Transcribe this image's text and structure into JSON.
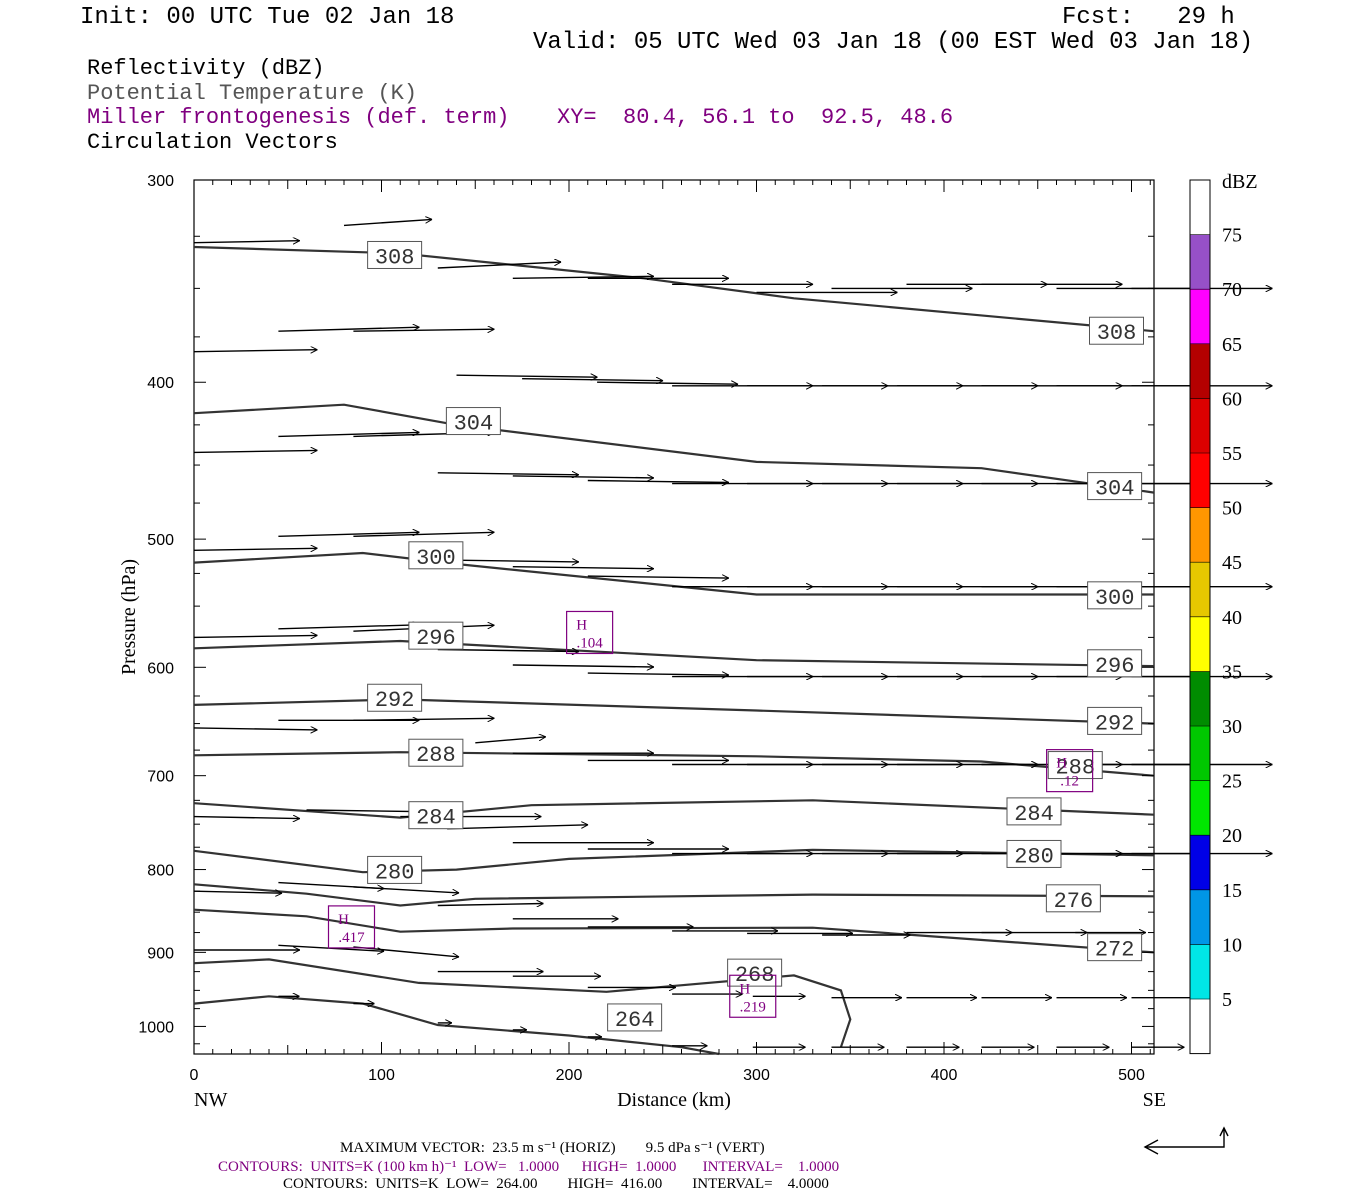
{
  "header": {
    "init": "Init: 00 UTC Tue 02 Jan 18",
    "fcst": "Fcst:   29 h",
    "valid": "Valid: 05 UTC Wed 03 Jan 18 (00 EST Wed 03 Jan 18)"
  },
  "fields": [
    "Reflectivity (dBZ)",
    "Potential Temperature (K)",
    "Miller frontogenesis (def. term)",
    "Circulation Vectors"
  ],
  "cross_section": "XY=  80.4, 56.1 to  92.5, 48.6",
  "colors": {
    "theta": "#333333",
    "frontogenesis": "#800080",
    "vectors": "#000000"
  },
  "chart_data": {
    "type": "line",
    "xlabel": "Distance (km)",
    "ylabel": "Pressure (hPa)",
    "xlim": [
      0,
      512
    ],
    "ylim": [
      1040,
      300
    ],
    "log_y": true,
    "x_ticks": [
      0,
      100,
      200,
      300,
      400,
      500
    ],
    "y_ticks": [
      300,
      400,
      500,
      600,
      700,
      800,
      900,
      1000
    ],
    "x_end_labels": [
      "NW",
      "SE"
    ],
    "contours": [
      {
        "level": "308",
        "pts": [
          [
            0,
            330
          ],
          [
            110,
            333
          ],
          [
            240,
            345
          ],
          [
            320,
            355
          ],
          [
            512,
            372
          ]
        ],
        "labels": [
          [
            107,
            334
          ],
          [
            492,
            372
          ]
        ]
      },
      {
        "level": "304",
        "pts": [
          [
            0,
            418
          ],
          [
            80,
            413
          ],
          [
            140,
            425
          ],
          [
            300,
            448
          ],
          [
            420,
            452
          ],
          [
            512,
            468
          ]
        ],
        "labels": [
          [
            149,
            423
          ],
          [
            491,
            464
          ]
        ]
      },
      {
        "level": "300",
        "pts": [
          [
            0,
            517
          ],
          [
            90,
            510
          ],
          [
            140,
            518
          ],
          [
            300,
            541
          ],
          [
            512,
            541
          ]
        ],
        "labels": [
          [
            129,
            512
          ],
          [
            491,
            542
          ]
        ]
      },
      {
        "level": "296",
        "pts": [
          [
            0,
            584
          ],
          [
            110,
            578
          ],
          [
            300,
            594
          ],
          [
            512,
            599
          ]
        ],
        "labels": [
          [
            129,
            574
          ],
          [
            491,
            597
          ]
        ]
      },
      {
        "level": "292",
        "pts": [
          [
            0,
            633
          ],
          [
            110,
            628
          ],
          [
            300,
            638
          ],
          [
            512,
            650
          ]
        ],
        "labels": [
          [
            107,
            627
          ],
          [
            491,
            648
          ]
        ]
      },
      {
        "level": "288",
        "pts": [
          [
            0,
            680
          ],
          [
            110,
            677
          ],
          [
            300,
            681
          ],
          [
            420,
            686
          ],
          [
            512,
            700
          ]
        ],
        "labels": [
          [
            129,
            678
          ],
          [
            470,
            690
          ]
        ]
      },
      {
        "level": "284",
        "pts": [
          [
            0,
            728
          ],
          [
            110,
            743
          ],
          [
            180,
            730
          ],
          [
            330,
            725
          ],
          [
            512,
            740
          ]
        ],
        "labels": [
          [
            129,
            741
          ],
          [
            448,
            737
          ]
        ]
      },
      {
        "level": "280",
        "pts": [
          [
            0,
            779
          ],
          [
            90,
            803
          ],
          [
            140,
            800
          ],
          [
            200,
            788
          ],
          [
            330,
            778
          ],
          [
            512,
            784
          ]
        ],
        "labels": [
          [
            107,
            801
          ],
          [
            448,
            783
          ]
        ]
      },
      {
        "level": "276",
        "pts": [
          [
            0,
            817
          ],
          [
            60,
            828
          ],
          [
            110,
            842
          ],
          [
            150,
            834
          ],
          [
            330,
            829
          ],
          [
            512,
            831
          ]
        ],
        "labels": [
          [
            469,
            834
          ]
        ]
      },
      {
        "level": "272",
        "pts": [
          [
            0,
            847
          ],
          [
            60,
            855
          ],
          [
            110,
            874
          ],
          [
            170,
            870
          ],
          [
            330,
            869
          ],
          [
            512,
            900
          ]
        ],
        "labels": [
          [
            491,
            894
          ]
        ]
      },
      {
        "level": "268",
        "pts": [
          [
            0,
            914
          ],
          [
            40,
            909
          ],
          [
            120,
            940
          ],
          [
            220,
            952
          ],
          [
            320,
            930
          ],
          [
            345,
            950
          ],
          [
            350,
            990
          ],
          [
            345,
            1030
          ]
        ],
        "labels": [
          [
            299,
            927
          ]
        ]
      },
      {
        "level": "264",
        "pts": [
          [
            0,
            968
          ],
          [
            40,
            958
          ],
          [
            90,
            968
          ],
          [
            130,
            998
          ],
          [
            200,
            1013
          ],
          [
            260,
            1030
          ],
          [
            280,
            1040
          ]
        ],
        "labels": [
          [
            235,
            988
          ]
        ]
      }
    ],
    "fg_maxima": [
      {
        "label": "H",
        "value": ".104",
        "x": 211,
        "p": 571
      },
      {
        "label": "H",
        "value": ".417",
        "x": 84,
        "p": 868
      },
      {
        "label": "H",
        "value": ".219",
        "x": 298,
        "p": 958
      },
      {
        "label": "H",
        "value": ".12",
        "x": 467,
        "p": 695
      }
    ],
    "vectors": [
      {
        "x": 0,
        "p": 328,
        "u": 30,
        "w": -1
      },
      {
        "x": 80,
        "p": 320,
        "u": 25,
        "w": -3
      },
      {
        "x": 130,
        "p": 340,
        "u": 35,
        "w": -3
      },
      {
        "x": 170,
        "p": 345,
        "u": 40,
        "w": -1
      },
      {
        "x": 210,
        "p": 345,
        "u": 40,
        "w": 0
      },
      {
        "x": 255,
        "p": 348,
        "u": 40,
        "w": 0
      },
      {
        "x": 300,
        "p": 352,
        "u": 40,
        "w": 0
      },
      {
        "x": 340,
        "p": 350,
        "u": 40,
        "w": 0
      },
      {
        "x": 380,
        "p": 348,
        "u": 40,
        "w": 0
      },
      {
        "x": 420,
        "p": 348,
        "u": 40,
        "w": 0
      },
      {
        "x": 460,
        "p": 350,
        "u": 40,
        "w": 0
      },
      {
        "x": 500,
        "p": 350,
        "u": 40,
        "w": 0
      },
      {
        "x": 0,
        "p": 383,
        "u": 35,
        "w": -1
      },
      {
        "x": 45,
        "p": 372,
        "u": 40,
        "w": -2
      },
      {
        "x": 85,
        "p": 372,
        "u": 40,
        "w": -1
      },
      {
        "x": 140,
        "p": 396,
        "u": 40,
        "w": 1
      },
      {
        "x": 175,
        "p": 398,
        "u": 40,
        "w": 1
      },
      {
        "x": 215,
        "p": 400,
        "u": 40,
        "w": 1
      },
      {
        "x": 255,
        "p": 402,
        "u": 40,
        "w": 0
      },
      {
        "x": 295,
        "p": 402,
        "u": 40,
        "w": 0
      },
      {
        "x": 335,
        "p": 402,
        "u": 40,
        "w": 0
      },
      {
        "x": 375,
        "p": 402,
        "u": 40,
        "w": 0
      },
      {
        "x": 420,
        "p": 402,
        "u": 40,
        "w": 0
      },
      {
        "x": 460,
        "p": 402,
        "u": 40,
        "w": 0
      },
      {
        "x": 500,
        "p": 402,
        "u": 40,
        "w": 0
      },
      {
        "x": 0,
        "p": 442,
        "u": 35,
        "w": -1
      },
      {
        "x": 45,
        "p": 432,
        "u": 40,
        "w": -2
      },
      {
        "x": 85,
        "p": 432,
        "u": 40,
        "w": -2
      },
      {
        "x": 130,
        "p": 455,
        "u": 40,
        "w": 1
      },
      {
        "x": 170,
        "p": 457,
        "u": 40,
        "w": 1
      },
      {
        "x": 210,
        "p": 460,
        "u": 40,
        "w": 1
      },
      {
        "x": 255,
        "p": 462,
        "u": 40,
        "w": 0
      },
      {
        "x": 295,
        "p": 462,
        "u": 40,
        "w": 0
      },
      {
        "x": 335,
        "p": 462,
        "u": 40,
        "w": 0
      },
      {
        "x": 375,
        "p": 462,
        "u": 40,
        "w": 0
      },
      {
        "x": 420,
        "p": 462,
        "u": 40,
        "w": 0
      },
      {
        "x": 460,
        "p": 462,
        "u": 40,
        "w": 0
      },
      {
        "x": 500,
        "p": 462,
        "u": 40,
        "w": 0
      },
      {
        "x": 0,
        "p": 508,
        "u": 35,
        "w": -1
      },
      {
        "x": 45,
        "p": 498,
        "u": 40,
        "w": -2
      },
      {
        "x": 85,
        "p": 498,
        "u": 40,
        "w": -2
      },
      {
        "x": 130,
        "p": 515,
        "u": 40,
        "w": 1
      },
      {
        "x": 170,
        "p": 520,
        "u": 40,
        "w": 1
      },
      {
        "x": 210,
        "p": 527,
        "u": 40,
        "w": 1
      },
      {
        "x": 255,
        "p": 535,
        "u": 40,
        "w": 0
      },
      {
        "x": 295,
        "p": 535,
        "u": 40,
        "w": 0
      },
      {
        "x": 335,
        "p": 535,
        "u": 40,
        "w": 0
      },
      {
        "x": 375,
        "p": 535,
        "u": 40,
        "w": 0
      },
      {
        "x": 420,
        "p": 535,
        "u": 40,
        "w": 0
      },
      {
        "x": 460,
        "p": 535,
        "u": 40,
        "w": 0
      },
      {
        "x": 500,
        "p": 535,
        "u": 40,
        "w": 0
      },
      {
        "x": 0,
        "p": 575,
        "u": 35,
        "w": -1
      },
      {
        "x": 45,
        "p": 568,
        "u": 40,
        "w": -2
      },
      {
        "x": 85,
        "p": 570,
        "u": 40,
        "w": -3
      },
      {
        "x": 130,
        "p": 585,
        "u": 40,
        "w": 1
      },
      {
        "x": 170,
        "p": 598,
        "u": 40,
        "w": 1
      },
      {
        "x": 210,
        "p": 605,
        "u": 40,
        "w": 1
      },
      {
        "x": 255,
        "p": 608,
        "u": 40,
        "w": 0
      },
      {
        "x": 295,
        "p": 608,
        "u": 40,
        "w": 0
      },
      {
        "x": 335,
        "p": 608,
        "u": 40,
        "w": 0
      },
      {
        "x": 375,
        "p": 608,
        "u": 40,
        "w": 0
      },
      {
        "x": 420,
        "p": 608,
        "u": 40,
        "w": 0
      },
      {
        "x": 460,
        "p": 608,
        "u": 40,
        "w": 0
      },
      {
        "x": 500,
        "p": 608,
        "u": 40,
        "w": 0
      },
      {
        "x": 0,
        "p": 654,
        "u": 35,
        "w": 1
      },
      {
        "x": 45,
        "p": 647,
        "u": 40,
        "w": 0
      },
      {
        "x": 85,
        "p": 647,
        "u": 40,
        "w": -1
      },
      {
        "x": 150,
        "p": 668,
        "u": 20,
        "w": -3
      },
      {
        "x": 170,
        "p": 678,
        "u": 40,
        "w": 0
      },
      {
        "x": 210,
        "p": 685,
        "u": 40,
        "w": 0
      },
      {
        "x": 255,
        "p": 689,
        "u": 40,
        "w": 0
      },
      {
        "x": 295,
        "p": 689,
        "u": 40,
        "w": 0
      },
      {
        "x": 335,
        "p": 689,
        "u": 40,
        "w": 0
      },
      {
        "x": 375,
        "p": 689,
        "u": 40,
        "w": 0
      },
      {
        "x": 420,
        "p": 689,
        "u": 40,
        "w": 0
      },
      {
        "x": 460,
        "p": 689,
        "u": 40,
        "w": 0
      },
      {
        "x": 500,
        "p": 689,
        "u": 40,
        "w": 0
      },
      {
        "x": 0,
        "p": 742,
        "u": 30,
        "w": 1
      },
      {
        "x": 60,
        "p": 735,
        "u": 40,
        "w": 1
      },
      {
        "x": 110,
        "p": 742,
        "u": 40,
        "w": 0
      },
      {
        "x": 135,
        "p": 755,
        "u": 40,
        "w": -2
      },
      {
        "x": 170,
        "p": 770,
        "u": 40,
        "w": 0
      },
      {
        "x": 210,
        "p": 777,
        "u": 40,
        "w": 0
      },
      {
        "x": 255,
        "p": 782,
        "u": 40,
        "w": 0
      },
      {
        "x": 295,
        "p": 782,
        "u": 40,
        "w": 0
      },
      {
        "x": 335,
        "p": 782,
        "u": 40,
        "w": 0
      },
      {
        "x": 375,
        "p": 782,
        "u": 40,
        "w": 0
      },
      {
        "x": 420,
        "p": 782,
        "u": 40,
        "w": 0
      },
      {
        "x": 460,
        "p": 782,
        "u": 40,
        "w": 0
      },
      {
        "x": 500,
        "p": 782,
        "u": 40,
        "w": 0
      },
      {
        "x": 0,
        "p": 825,
        "u": 25,
        "w": 1
      },
      {
        "x": 45,
        "p": 815,
        "u": 30,
        "w": 3
      },
      {
        "x": 85,
        "p": 820,
        "u": 30,
        "w": 3
      },
      {
        "x": 130,
        "p": 842,
        "u": 30,
        "w": -1
      },
      {
        "x": 170,
        "p": 858,
        "u": 30,
        "w": 0
      },
      {
        "x": 210,
        "p": 868,
        "u": 30,
        "w": 0
      },
      {
        "x": 255,
        "p": 873,
        "u": 30,
        "w": 0
      },
      {
        "x": 295,
        "p": 876,
        "u": 30,
        "w": 0
      },
      {
        "x": 335,
        "p": 878,
        "u": 25,
        "w": 0
      },
      {
        "x": 380,
        "p": 875,
        "u": 30,
        "w": 0
      },
      {
        "x": 420,
        "p": 875,
        "u": 30,
        "w": 0
      },
      {
        "x": 470,
        "p": 875,
        "u": 20,
        "w": 0
      },
      {
        "x": 0,
        "p": 897,
        "u": 30,
        "w": 0
      },
      {
        "x": 45,
        "p": 891,
        "u": 30,
        "w": 3
      },
      {
        "x": 85,
        "p": 893,
        "u": 30,
        "w": 5
      },
      {
        "x": 130,
        "p": 925,
        "u": 30,
        "w": 0
      },
      {
        "x": 170,
        "p": 931,
        "u": 25,
        "w": 0
      },
      {
        "x": 210,
        "p": 946,
        "u": 25,
        "w": 0
      },
      {
        "x": 255,
        "p": 955,
        "u": 20,
        "w": 0
      },
      {
        "x": 298,
        "p": 958,
        "u": 15,
        "w": 0
      },
      {
        "x": 340,
        "p": 960,
        "u": 20,
        "w": 0
      },
      {
        "x": 380,
        "p": 960,
        "u": 20,
        "w": 0
      },
      {
        "x": 420,
        "p": 960,
        "u": 20,
        "w": 0
      },
      {
        "x": 460,
        "p": 960,
        "u": 20,
        "w": 0
      },
      {
        "x": 500,
        "p": 960,
        "u": 20,
        "w": 0
      },
      {
        "x": 45,
        "p": 958,
        "u": 6,
        "w": 0
      },
      {
        "x": 85,
        "p": 968,
        "u": 6,
        "w": 0
      },
      {
        "x": 130,
        "p": 995,
        "u": 4,
        "w": 0
      },
      {
        "x": 170,
        "p": 1005,
        "u": 4,
        "w": 0
      },
      {
        "x": 210,
        "p": 1015,
        "u": 4,
        "w": 0
      },
      {
        "x": 255,
        "p": 1028,
        "u": 10,
        "w": 0
      },
      {
        "x": 298,
        "p": 1030,
        "u": 15,
        "w": 0
      },
      {
        "x": 340,
        "p": 1030,
        "u": 15,
        "w": 0
      },
      {
        "x": 380,
        "p": 1030,
        "u": 15,
        "w": 0
      },
      {
        "x": 420,
        "p": 1030,
        "u": 15,
        "w": 0
      },
      {
        "x": 460,
        "p": 1030,
        "u": 15,
        "w": 0
      },
      {
        "x": 500,
        "p": 1030,
        "u": 15,
        "w": 0
      }
    ]
  },
  "colorbar": {
    "unit": "dBZ",
    "labels": [
      "5",
      "10",
      "15",
      "20",
      "25",
      "30",
      "35",
      "40",
      "45",
      "50",
      "55",
      "60",
      "65",
      "70",
      "75"
    ],
    "colors": [
      "#ffffff",
      "#00e6e6",
      "#0096e6",
      "#0000e6",
      "#00e600",
      "#00c800",
      "#008c00",
      "#ffff00",
      "#e6c800",
      "#ff9600",
      "#ff0000",
      "#dc0000",
      "#b40000",
      "#ff00ff",
      "#9650c8",
      "#ffffff"
    ]
  },
  "footer": {
    "max_vector": "MAXIMUM VECTOR:  23.5 m s⁻¹ (HORIZ)        9.5 dPa s⁻¹ (VERT)",
    "miller_contours": "CONTOURS:  UNITS=K (100 km h)⁻¹  LOW=   1.0000      HIGH=  1.0000       INTERVAL=    1.0000",
    "theta_contours": "CONTOURS:  UNITS=K  LOW=  264.00        HIGH=  416.00        INTERVAL=    4.0000"
  }
}
